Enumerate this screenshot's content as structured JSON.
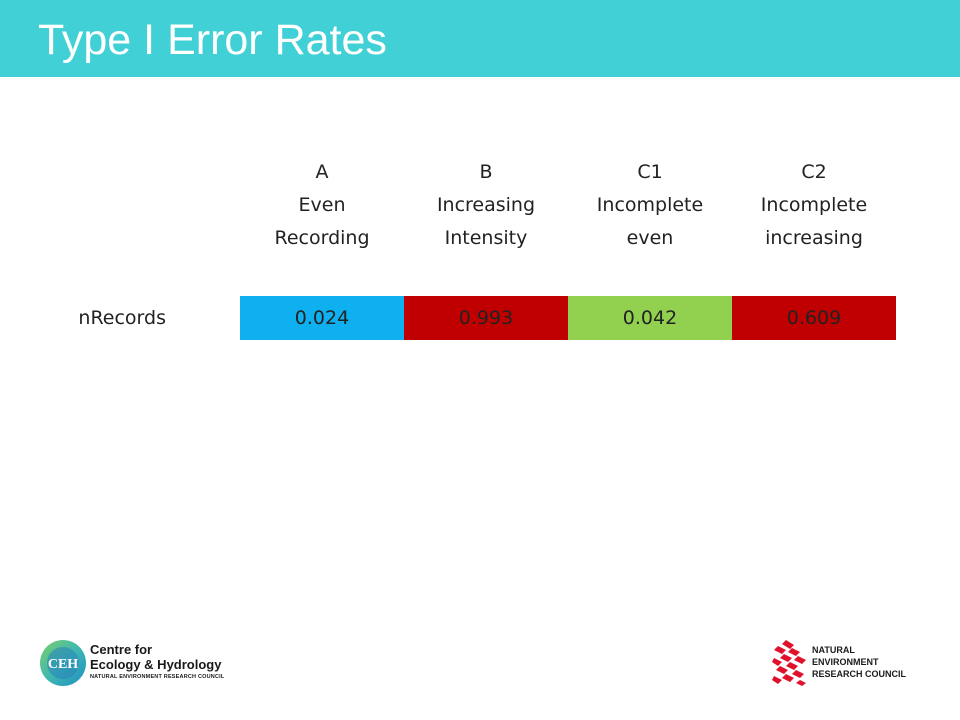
{
  "slide": {
    "title": "Type I Error Rates"
  },
  "table": {
    "columns": [
      {
        "letter": "A",
        "line1": "Even",
        "line2": "Recording"
      },
      {
        "letter": "B",
        "line1": "Increasing",
        "line2": "Intensity"
      },
      {
        "letter": "C1",
        "line1": "Incomplete",
        "line2": "even"
      },
      {
        "letter": "C2",
        "line1": "Incomplete",
        "line2": "increasing"
      }
    ],
    "rows": [
      {
        "label": "nRecords",
        "values": [
          "0.024",
          "0.993",
          "0.042",
          "0.609"
        ],
        "colors": [
          "#0fb0ef",
          "#c00000",
          "#92d050",
          "#c00000"
        ]
      }
    ]
  },
  "logos": {
    "ceh": {
      "icon": "ceh-logo-icon",
      "badge": "CEH",
      "line1": "Centre for",
      "line2": "Ecology & Hydrology",
      "line3": "NATURAL ENVIRONMENT RESEARCH COUNCIL"
    },
    "nerc": {
      "icon": "nerc-logo-icon",
      "line1": "NATURAL",
      "line2": "ENVIRONMENT",
      "line3": "RESEARCH COUNCIL"
    }
  }
}
